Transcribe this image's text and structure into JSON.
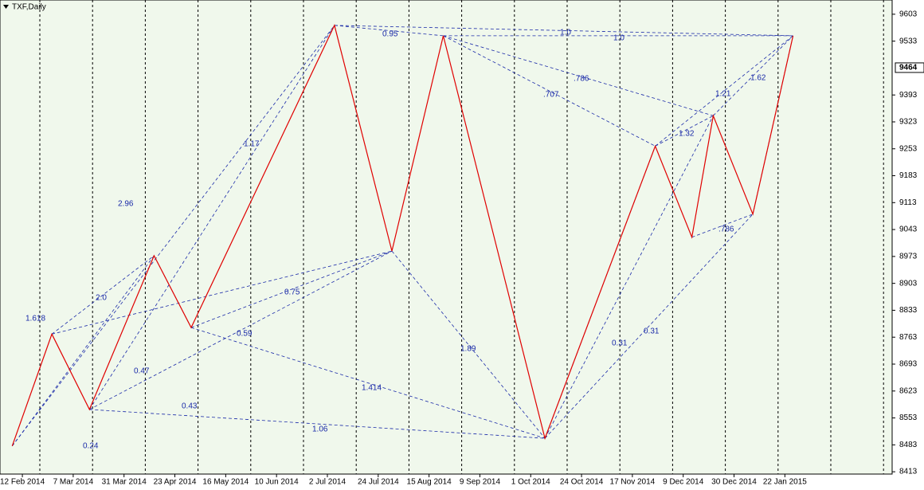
{
  "chart_data": {
    "type": "line",
    "title": "TXF,Daily",
    "categories": [
      "12 Feb 2014",
      "7 Mar 2014",
      "31 Mar 2014",
      "23 Apr 2014",
      "16 May 2014",
      "10 Jun 2014",
      "2 Jul 2014",
      "24 Jul 2014",
      "15 Aug 2014",
      "9 Sep 2014",
      "1 Oct 2014",
      "24 Oct 2014",
      "17 Nov 2014",
      "9 Dec 2014",
      "30 Dec 2014",
      "22 Jan 2015"
    ],
    "series": [
      {
        "color": "#e00000",
        "x": [
          -0.2,
          0.58,
          1.32,
          2.59,
          3.32,
          6.14,
          7.27,
          8.28,
          10.28,
          12.45,
          13.17,
          13.59,
          14.37,
          15.16
        ],
        "values": [
          8480,
          8771,
          8575,
          8975,
          8788,
          9574,
          8987,
          9547,
          8500,
          9260,
          9023,
          9339,
          9083,
          9547
        ]
      }
    ],
    "xlim": [
      -0.44,
      17.11
    ],
    "ylim": [
      8407,
      9640
    ],
    "yticks": [
      9603,
      9533,
      9393,
      9323,
      9253,
      9183,
      9113,
      9043,
      8973,
      8903,
      8833,
      8763,
      8693,
      8623,
      8553,
      8483,
      8413
    ],
    "current_price": 9464,
    "annotations": [
      "1.618",
      "2.0",
      "2.96",
      "1.17",
      "0.95",
      "1.0",
      "1.0",
      ".786",
      ".707",
      "1.32",
      "1.21",
      "1.62",
      ".786",
      "0.75",
      "0.59",
      "0.47",
      "0.43",
      "0.24",
      "1.414",
      "1.06",
      "1.89",
      "0.31",
      "0.31"
    ]
  }
}
